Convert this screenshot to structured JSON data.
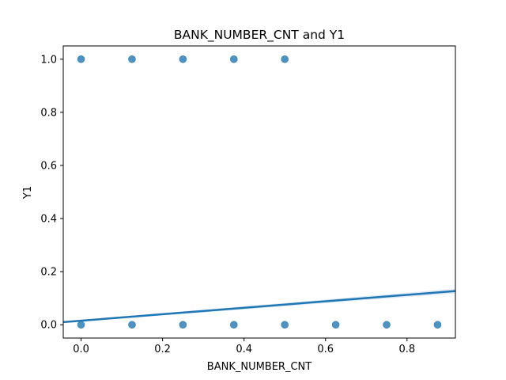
{
  "chart_data": {
    "type": "scatter",
    "title": "BANK_NUMBER_CNT and Y1",
    "xlabel": "BANK_NUMBER_CNT",
    "ylabel": "Y1",
    "xlim": [
      -0.04375,
      0.91875
    ],
    "ylim": [
      -0.05,
      1.05
    ],
    "x_ticks": [
      0.0,
      0.2,
      0.4,
      0.6,
      0.8
    ],
    "x_tick_labels": [
      "0.0",
      "0.2",
      "0.4",
      "0.6",
      "0.8"
    ],
    "y_ticks": [
      0.0,
      0.2,
      0.4,
      0.6,
      0.8,
      1.0
    ],
    "y_tick_labels": [
      "0.0",
      "0.2",
      "0.4",
      "0.6",
      "0.8",
      "1.0"
    ],
    "grid": false,
    "point_color": "#1f77b4",
    "series": [
      {
        "values": [
          {
            "x": 0.0,
            "y": 1
          },
          {
            "x": 0.125,
            "y": 1
          },
          {
            "x": 0.25,
            "y": 1
          },
          {
            "x": 0.375,
            "y": 1
          },
          {
            "x": 0.5,
            "y": 1
          },
          {
            "x": 0.0,
            "y": 0
          },
          {
            "x": 0.125,
            "y": 0
          },
          {
            "x": 0.25,
            "y": 0
          },
          {
            "x": 0.375,
            "y": 0
          },
          {
            "x": 0.5,
            "y": 0
          },
          {
            "x": 0.625,
            "y": 0
          },
          {
            "x": 0.75,
            "y": 0
          },
          {
            "x": 0.875,
            "y": 0
          }
        ]
      }
    ],
    "regression": {
      "color": "#1f77b4",
      "x_start": -0.04375,
      "y_start": 0.01,
      "x_end": 0.91875,
      "y_end": 0.127,
      "ci_halfwidth_start": 0.003,
      "ci_halfwidth_end": 0.009
    }
  }
}
